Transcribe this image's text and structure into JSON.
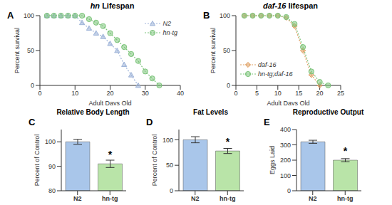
{
  "chart_data": [
    {
      "label": "A",
      "type": "line",
      "title": "hn Lifespan",
      "x_label": "Adult Days Old",
      "y_label": "Percent survival",
      "x": [
        2,
        4,
        6,
        8,
        10,
        12,
        14,
        16,
        18,
        20,
        22,
        24,
        26,
        28,
        30,
        32,
        34
      ],
      "series": [
        {
          "name": "N2",
          "color": "#9fb4d9",
          "marker": "triangle",
          "line_style": "dotted",
          "values": [
            100,
            100,
            100,
            100,
            100,
            90,
            82,
            75,
            70,
            60,
            50,
            30,
            15,
            0,
            null,
            null,
            null
          ]
        },
        {
          "name": "hn-tg",
          "color": "#7cc47a",
          "marker": "circle",
          "line_style": "dotted",
          "values": [
            100,
            100,
            100,
            100,
            100,
            100,
            95,
            90,
            85,
            75,
            65,
            55,
            45,
            35,
            20,
            10,
            0
          ]
        }
      ],
      "xlim": [
        0,
        40
      ],
      "xticks": [
        0,
        10,
        20,
        30,
        40
      ],
      "ylim": [
        0,
        100
      ],
      "yticks": [
        0,
        50,
        100
      ],
      "legend": "upper right"
    },
    {
      "label": "B",
      "type": "line",
      "title": "daf-16 lifespan",
      "x_label": "Adult Days Old",
      "y_label": "Percent survival",
      "x": [
        2,
        4,
        6,
        8,
        10,
        12,
        14,
        16,
        18,
        20,
        22
      ],
      "series": [
        {
          "name": "daf-16",
          "color": "#e0a064",
          "marker": "diamond",
          "line_style": "dotted",
          "values": [
            100,
            100,
            100,
            100,
            100,
            97,
            85,
            50,
            15,
            0,
            null
          ]
        },
        {
          "name": "hn-tg;daf-16",
          "color": "#7cc47a",
          "marker": "circle",
          "line_style": "dotted",
          "values": [
            100,
            100,
            100,
            100,
            100,
            98,
            88,
            55,
            20,
            5,
            0
          ]
        }
      ],
      "xlim": [
        0,
        25
      ],
      "xticks": [
        0,
        5,
        10,
        15,
        20,
        25
      ],
      "ylim": [
        0,
        100
      ],
      "yticks": [
        0,
        50,
        100
      ],
      "legend": "lower left"
    },
    {
      "label": "C",
      "type": "bar",
      "title": "Relative Body Length",
      "y_label": "Percent of Control",
      "categories": [
        "N2",
        "hn-tg"
      ],
      "values": [
        100,
        91
      ],
      "errors": [
        1,
        1.5
      ],
      "colors": [
        "#a9c6ea",
        "#b9e4a8"
      ],
      "ylim": [
        80,
        105
      ],
      "yticks": [
        80,
        90,
        100
      ],
      "annotations": [
        {
          "text": "*",
          "category": "hn-tg"
        }
      ]
    },
    {
      "label": "D",
      "type": "bar",
      "title": "Fat Levels",
      "y_label": "Percent of Control",
      "categories": [
        "N2",
        "hn-tg"
      ],
      "values": [
        100,
        78
      ],
      "errors": [
        6,
        5
      ],
      "colors": [
        "#a9c6ea",
        "#b9e4a8"
      ],
      "ylim": [
        0,
        120
      ],
      "yticks": [
        0,
        50,
        100
      ],
      "annotations": [
        {
          "text": "*",
          "category": "hn-tg"
        }
      ]
    },
    {
      "label": "E",
      "type": "bar",
      "title": "Reproductive Output",
      "y_label": "Eggs Laid",
      "categories": [
        "N2",
        "hn-tg"
      ],
      "values": [
        320,
        200
      ],
      "errors": [
        10,
        10
      ],
      "colors": [
        "#a9c6ea",
        "#b9e4a8"
      ],
      "ylim": [
        0,
        400
      ],
      "yticks": [
        0,
        100,
        200,
        300,
        400
      ],
      "annotations": [
        {
          "text": "*",
          "category": "hn-tg"
        }
      ]
    }
  ]
}
